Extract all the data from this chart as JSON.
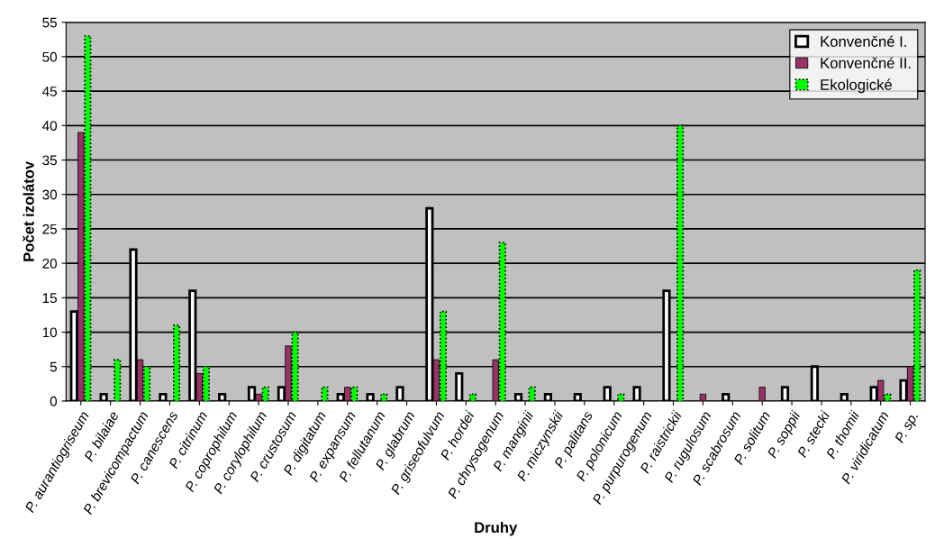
{
  "chart_data": {
    "type": "bar",
    "xlabel": "Druhy",
    "ylabel": "Počet izolátov",
    "categories": [
      "P. aurantiogriseum",
      "P. bilaiae",
      "P. brevicompactum",
      "P. canescens",
      "P. citrinum",
      "P. coprophilum",
      "P. corylophilum",
      "P. crustosum",
      "P. digitatum",
      "P. expansum",
      "P. fellutanum",
      "P. glabrum",
      "P. griseofulvum",
      "P. hordei",
      "P. chrysogenum",
      "P. manginii",
      "P. miczynskii",
      "P. palitans",
      "P. polonicum",
      "P. purpurogenum",
      "P. raistrickii",
      "P. rugulosum",
      "P. scabrosum",
      "P. solitum",
      "P. soppii",
      "P. stecki",
      "P. thomii",
      "P. viridicatum",
      "P. sp."
    ],
    "series": [
      {
        "name": "Konvenčné I.",
        "color": "#ffffff",
        "values": [
          13,
          1,
          22,
          1,
          16,
          1,
          2,
          2,
          null,
          1,
          1,
          2,
          28,
          4,
          null,
          1,
          1,
          1,
          2,
          2,
          16,
          null,
          1,
          null,
          2,
          5,
          1,
          2,
          3
        ]
      },
      {
        "name": "Konvenčné II.",
        "color": "#993366",
        "values": [
          39,
          null,
          6,
          null,
          4,
          null,
          1,
          8,
          null,
          2,
          null,
          null,
          6,
          null,
          6,
          null,
          null,
          null,
          null,
          null,
          null,
          1,
          null,
          2,
          null,
          null,
          null,
          3,
          5
        ]
      },
      {
        "name": "Ekologické",
        "color": "#00ff00",
        "values": [
          53,
          6,
          5,
          11,
          5,
          null,
          2,
          10,
          2,
          2,
          1,
          null,
          13,
          1,
          23,
          2,
          null,
          null,
          1,
          null,
          40,
          null,
          null,
          null,
          null,
          null,
          null,
          1,
          19
        ]
      }
    ],
    "ylim": [
      0,
      55
    ],
    "yticks": [
      0,
      5,
      10,
      15,
      20,
      25,
      30,
      35,
      40,
      45,
      50,
      55
    ],
    "grid": "y",
    "legend": "top right"
  }
}
